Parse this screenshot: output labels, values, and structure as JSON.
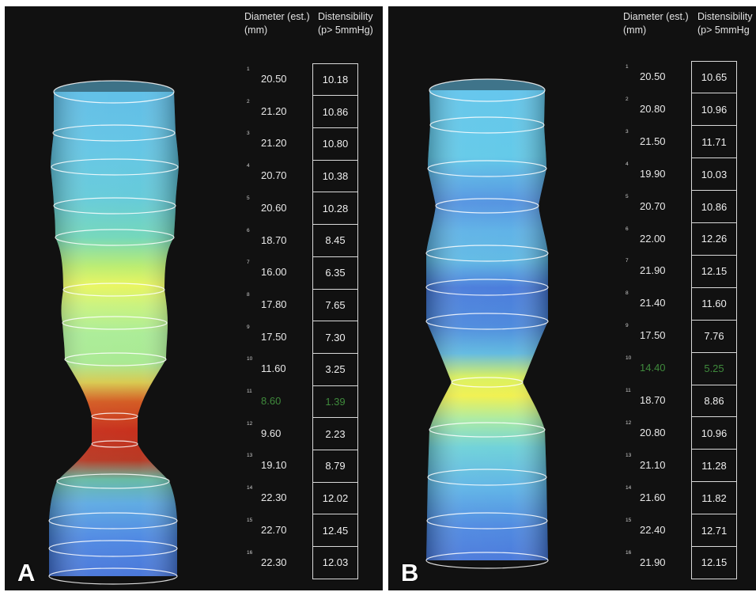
{
  "panels": [
    {
      "label": "A",
      "header": {
        "diameter": "Diameter (est.)",
        "diameter_unit": "(mm)",
        "distensibility": "Distensibility",
        "distensibility_unit": "(p> 5mmHg)"
      },
      "highlight_color": "#3f8a3c",
      "rows": [
        {
          "n": "1",
          "diameter": "20.50",
          "distensibility": "10.18"
        },
        {
          "n": "2",
          "diameter": "21.20",
          "distensibility": "10.86"
        },
        {
          "n": "3",
          "diameter": "21.20",
          "distensibility": "10.80"
        },
        {
          "n": "4",
          "diameter": "20.70",
          "distensibility": "10.38"
        },
        {
          "n": "5",
          "diameter": "20.60",
          "distensibility": "10.28"
        },
        {
          "n": "6",
          "diameter": "18.70",
          "distensibility": "8.45"
        },
        {
          "n": "7",
          "diameter": "16.00",
          "distensibility": "6.35"
        },
        {
          "n": "8",
          "diameter": "17.80",
          "distensibility": "7.65"
        },
        {
          "n": "9",
          "diameter": "17.50",
          "distensibility": "7.30"
        },
        {
          "n": "10",
          "diameter": "11.60",
          "distensibility": "3.25"
        },
        {
          "n": "11",
          "diameter": "8.60",
          "distensibility": "1.39",
          "highlight": true
        },
        {
          "n": "12",
          "diameter": "9.60",
          "distensibility": "2.23"
        },
        {
          "n": "13",
          "diameter": "19.10",
          "distensibility": "8.79"
        },
        {
          "n": "14",
          "diameter": "22.30",
          "distensibility": "12.02"
        },
        {
          "n": "15",
          "diameter": "22.70",
          "distensibility": "12.45"
        },
        {
          "n": "16",
          "diameter": "22.30",
          "distensibility": "12.03"
        }
      ]
    },
    {
      "label": "B",
      "header": {
        "diameter": "Diameter (est.)",
        "diameter_unit": "(mm)",
        "distensibility": "Distensibility",
        "distensibility_unit": "(p> 5mmHg"
      },
      "highlight_color": "#3f8a3c",
      "rows": [
        {
          "n": "1",
          "diameter": "20.50",
          "distensibility": "10.65"
        },
        {
          "n": "2",
          "diameter": "20.80",
          "distensibility": "10.96"
        },
        {
          "n": "3",
          "diameter": "21.50",
          "distensibility": "11.71"
        },
        {
          "n": "4",
          "diameter": "19.90",
          "distensibility": "10.03"
        },
        {
          "n": "5",
          "diameter": "20.70",
          "distensibility": "10.86"
        },
        {
          "n": "6",
          "diameter": "22.00",
          "distensibility": "12.26"
        },
        {
          "n": "7",
          "diameter": "21.90",
          "distensibility": "12.15"
        },
        {
          "n": "8",
          "diameter": "21.40",
          "distensibility": "11.60"
        },
        {
          "n": "9",
          "diameter": "17.50",
          "distensibility": "7.76"
        },
        {
          "n": "10",
          "diameter": "14.40",
          "distensibility": "5.25",
          "highlight": true
        },
        {
          "n": "11",
          "diameter": "18.70",
          "distensibility": "8.86"
        },
        {
          "n": "12",
          "diameter": "20.80",
          "distensibility": "10.96"
        },
        {
          "n": "13",
          "diameter": "21.10",
          "distensibility": "11.28"
        },
        {
          "n": "14",
          "diameter": "21.60",
          "distensibility": "11.82"
        },
        {
          "n": "15",
          "diameter": "22.40",
          "distensibility": "12.71"
        },
        {
          "n": "16",
          "diameter": "21.90",
          "distensibility": "12.15"
        }
      ]
    }
  ]
}
